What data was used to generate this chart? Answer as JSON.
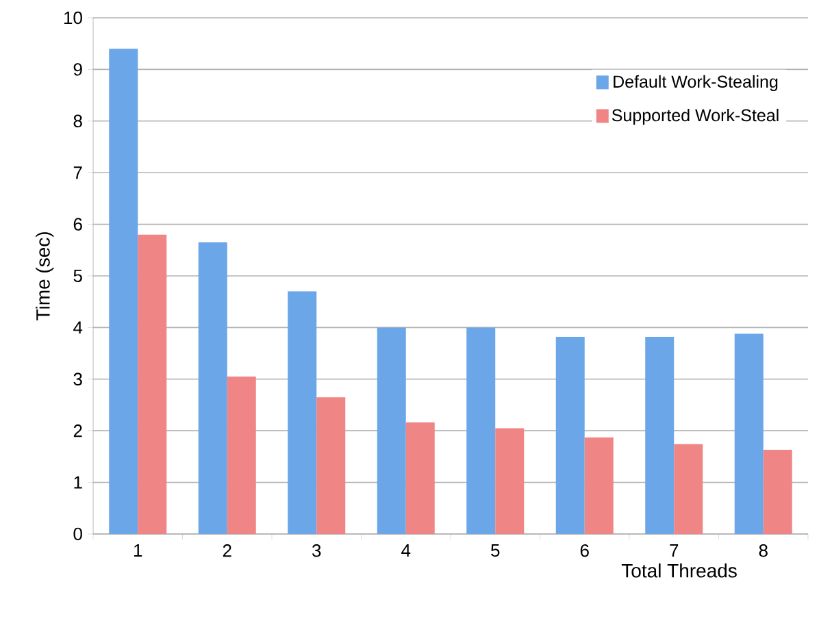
{
  "chart_data": {
    "type": "bar",
    "xlabel": "Total Threads",
    "ylabel": "Time (sec)",
    "categories": [
      "1",
      "2",
      "3",
      "4",
      "5",
      "6",
      "7",
      "8"
    ],
    "series": [
      {
        "name": "Default Work-Stealing",
        "color": "#6aa6e8",
        "values": [
          9.4,
          5.65,
          4.7,
          4.0,
          4.0,
          3.82,
          3.82,
          3.88
        ]
      },
      {
        "name": "Supported Work-Steal",
        "color": "#f08585",
        "values": [
          5.8,
          3.05,
          2.65,
          2.16,
          2.05,
          1.87,
          1.74,
          1.63
        ]
      }
    ],
    "ylim": [
      0,
      10
    ],
    "yticks": [
      0,
      1,
      2,
      3,
      4,
      5,
      6,
      7,
      8,
      9,
      10
    ],
    "grid": "y",
    "legend": "top right"
  }
}
